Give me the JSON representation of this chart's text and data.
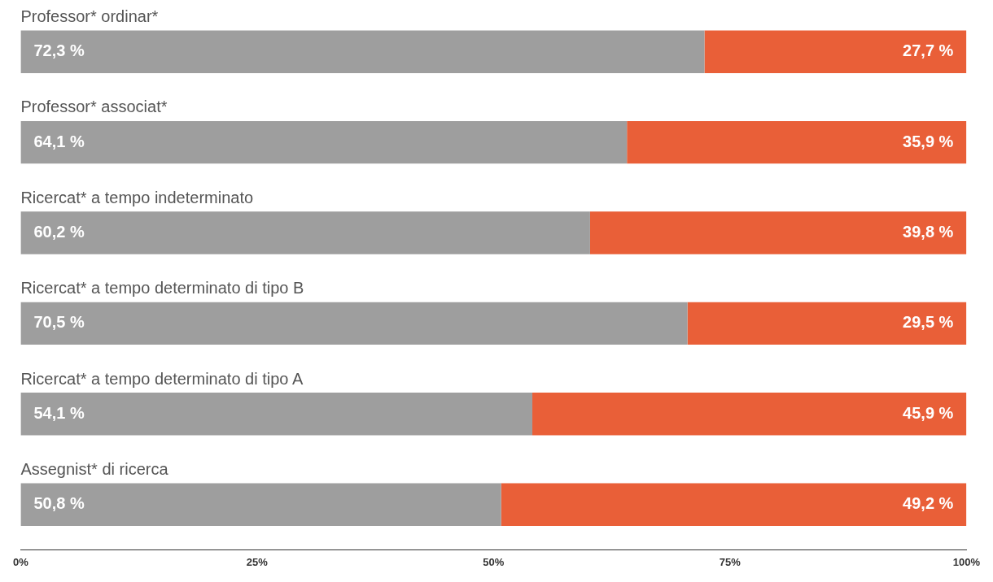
{
  "chart_data": {
    "type": "bar",
    "orientation": "horizontal",
    "stacked": true,
    "categories": [
      "Professor* ordinar*",
      "Professor* associat*",
      "Ricercat* a tempo indeterminato",
      "Ricercat* a tempo determinato di tipo B",
      "Ricercat* a tempo determinato di tipo A",
      "Assegnist* di ricerca"
    ],
    "series": [
      {
        "color": "#9e9e9e",
        "values": [
          72.3,
          64.1,
          60.2,
          70.5,
          54.1,
          50.8
        ],
        "value_labels": [
          "72,3 %",
          "64,1 %",
          "60,2 %",
          "70,5 %",
          "54,1 %",
          "50,8 %"
        ]
      },
      {
        "color": "#e95f38",
        "values": [
          27.7,
          35.9,
          39.8,
          29.5,
          45.9,
          49.2
        ],
        "value_labels": [
          "27,7 %",
          "35,9 %",
          "39,8 %",
          "29,5 %",
          "45,9 %",
          "49,2 %"
        ]
      }
    ],
    "xlim": [
      0,
      100
    ],
    "xticks": [
      {
        "value": 0,
        "label": "0%"
      },
      {
        "value": 25,
        "label": "25%"
      },
      {
        "value": 50,
        "label": "50%"
      },
      {
        "value": 75,
        "label": "75%"
      },
      {
        "value": 100,
        "label": "100%"
      }
    ],
    "grid": false,
    "legend": false
  }
}
